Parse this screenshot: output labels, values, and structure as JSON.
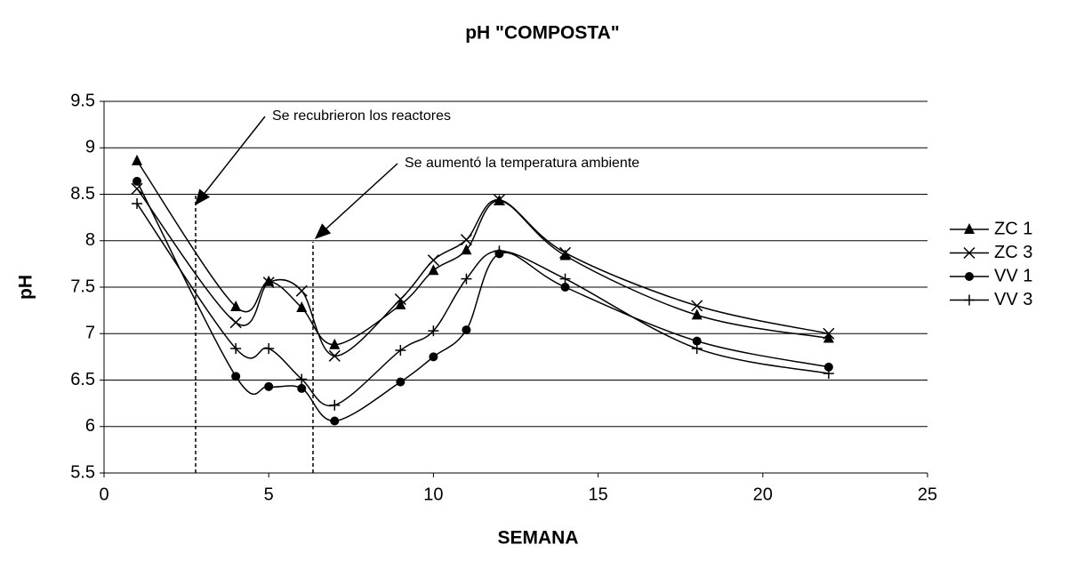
{
  "chart_data": {
    "type": "line",
    "title": "pH \"COMPOSTA\"",
    "xlabel": "SEMANA",
    "ylabel": "pH",
    "x": [
      1,
      4,
      5,
      6,
      7,
      9,
      10,
      11,
      12,
      14,
      18,
      22
    ],
    "series": [
      {
        "name": "ZC 1",
        "color": "#000000",
        "marker": "triangle",
        "values": [
          8.86,
          7.29,
          7.56,
          7.28,
          6.88,
          7.31,
          7.68,
          7.9,
          8.43,
          7.84,
          7.2,
          6.95
        ]
      },
      {
        "name": "ZC 3",
        "color": "#000000",
        "marker": "x",
        "values": [
          8.56,
          7.12,
          7.55,
          7.46,
          6.76,
          7.37,
          7.79,
          8.01,
          8.44,
          7.87,
          7.3,
          7.0
        ]
      },
      {
        "name": "VV 1",
        "color": "#000000",
        "marker": "circle",
        "values": [
          8.64,
          6.54,
          6.43,
          6.41,
          6.06,
          6.48,
          6.75,
          7.04,
          7.86,
          7.5,
          6.92,
          6.64
        ]
      },
      {
        "name": "VV 3",
        "color": "#000000",
        "marker": "plus",
        "values": [
          8.4,
          6.84,
          6.84,
          6.51,
          6.23,
          6.82,
          7.03,
          7.59,
          7.89,
          7.59,
          6.84,
          6.57
        ]
      }
    ],
    "xlim": [
      0,
      25
    ],
    "xticks": [
      0,
      5,
      10,
      15,
      20,
      25
    ],
    "ylim": [
      5.5,
      9.5
    ],
    "yticks": [
      5.5,
      6,
      6.5,
      7,
      7.5,
      8,
      8.5,
      9,
      9.5
    ],
    "grid": true,
    "legend": "right",
    "annotations": [
      "Se recubrieron los reactores",
      "Se aumentó la temperatura ambiente"
    ]
  }
}
